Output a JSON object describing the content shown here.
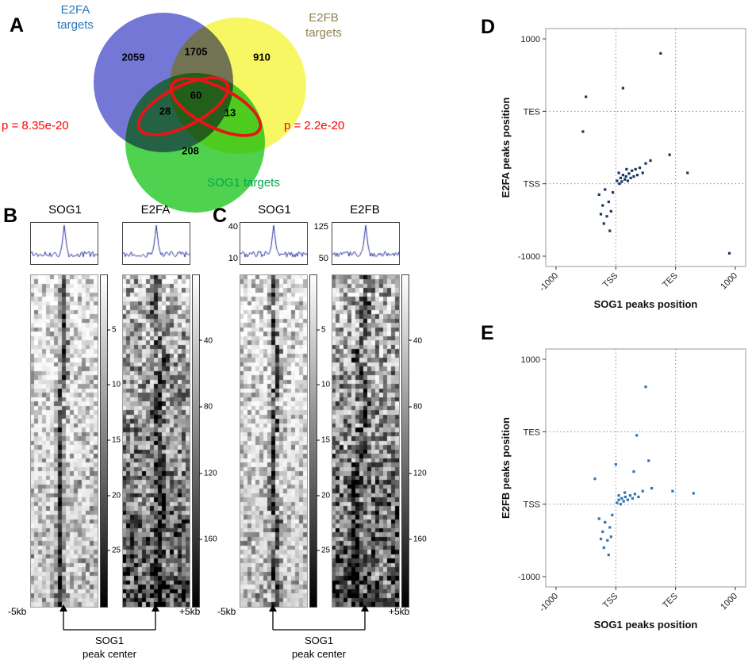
{
  "panel_letters": {
    "A": "A",
    "D": "D",
    "E": "E"
  },
  "venn": {
    "labels": {
      "e2fa": {
        "line1": "E2FA",
        "line2": "targets"
      },
      "e2fb": {
        "line1": "E2FB",
        "line2": "targets"
      },
      "sog1": "SOG1 targets"
    },
    "counts": {
      "e2fa_only": "2059",
      "e2fa_e2fb": "1705",
      "e2fb_only": "910",
      "e2fa_sog1": "28",
      "all_three": "60",
      "e2fb_sog1": "13",
      "sog1_only": "208"
    },
    "pvalues": {
      "left": "p = 8.35e-20",
      "right": "p = 2.2e-20"
    },
    "colors": {
      "e2fa_circle": "#7577d6",
      "e2fb_circle": "#f7f763",
      "sog1_circle": "#4fd24f",
      "e2fa_label": "#2e75b6",
      "e2fb_label": "#8f8455",
      "sog1_label": "#00a651",
      "highlight": "#e81417",
      "pvalue": "#ff0000"
    }
  },
  "heatmap_panels": [
    {
      "letter": "B",
      "columns": [
        {
          "title": "SOG1",
          "profile_ticks": [],
          "colorbar_ticks": [
            "5",
            "10",
            "15",
            "20",
            "25"
          ]
        },
        {
          "title": "E2FA",
          "profile_ticks": [],
          "colorbar_ticks": [
            "40",
            "80",
            "120",
            "160"
          ]
        }
      ],
      "x_left": "-5kb",
      "x_right": "+5kb",
      "annotation_line1": "SOG1",
      "annotation_line2": "peak center"
    },
    {
      "letter": "C",
      "columns": [
        {
          "title": "SOG1",
          "profile_ticks": [
            "40",
            "10"
          ],
          "colorbar_ticks": [
            "5",
            "10",
            "15",
            "20",
            "25"
          ]
        },
        {
          "title": "E2FB",
          "profile_ticks": [
            "125",
            "50"
          ],
          "colorbar_ticks": [
            "40",
            "80",
            "120",
            "160"
          ]
        }
      ],
      "x_left": "-5kb",
      "x_right": "+5kb",
      "annotation_line1": "SOG1",
      "annotation_line2": "peak center"
    }
  ],
  "chart_data": [
    {
      "type": "venn",
      "sets": [
        "E2FA targets",
        "E2FB targets",
        "SOG1 targets"
      ],
      "region_counts": {
        "E2FA only": 2059,
        "E2FA and E2FB": 1705,
        "E2FB only": 910,
        "E2FA and SOG1": 28,
        "E2FA and E2FB and SOG1": 60,
        "E2FB and SOG1": 13,
        "SOG1 only": 208
      },
      "highlight_pvalues": {
        "E2FA-SOG1 overlap": "p = 8.35e-20",
        "E2FB-SOG1 overlap": "p = 2.2e-20"
      }
    },
    {
      "type": "heatmap",
      "canvas": "hm-b-0",
      "profile_canvas": "pf-b-0",
      "panel": "B",
      "title": "SOG1",
      "rows": 76,
      "cols": 17,
      "seed": 101,
      "jitter": 0.5,
      "noise_exp": 2.4,
      "noise_amp": 0.5,
      "bottom_boost": 0.15,
      "scale_ticks": [
        5,
        10,
        15,
        20,
        25
      ],
      "x_range": [
        "-5kb",
        "+5kb"
      ],
      "centered_on": "SOG1 peak center",
      "profile_color": "#2a2f9c"
    },
    {
      "type": "heatmap",
      "canvas": "hm-b-1",
      "profile_canvas": "pf-b-1",
      "panel": "B",
      "title": "E2FA",
      "rows": 76,
      "cols": 17,
      "seed": 202,
      "jitter": 1.6,
      "noise_exp": 1.5,
      "noise_amp": 0.72,
      "bottom_boost": 0.55,
      "scale_ticks": [
        40,
        80,
        120,
        160
      ],
      "x_range": [
        "-5kb",
        "+5kb"
      ],
      "centered_on": "SOG1 peak center",
      "profile_color": "#2a2f9c"
    },
    {
      "type": "heatmap",
      "canvas": "hm-c-0",
      "profile_canvas": "pf-c-0",
      "panel": "C",
      "title": "SOG1",
      "rows": 76,
      "cols": 17,
      "seed": 303,
      "jitter": 0.5,
      "noise_exp": 2.4,
      "noise_amp": 0.5,
      "bottom_boost": 0.15,
      "scale_ticks": [
        5,
        10,
        15,
        20,
        25
      ],
      "profile_axis": [
        40,
        10
      ],
      "x_range": [
        "-5kb",
        "+5kb"
      ],
      "centered_on": "SOG1 peak center",
      "profile_color": "#2a2f9c"
    },
    {
      "type": "heatmap",
      "canvas": "hm-c-1",
      "profile_canvas": "pf-c-1",
      "panel": "C",
      "title": "E2FB",
      "rows": 76,
      "cols": 17,
      "seed": 404,
      "jitter": 1.6,
      "noise_exp": 1.5,
      "noise_amp": 0.72,
      "bottom_boost": 0.55,
      "scale_ticks": [
        40,
        80,
        120,
        160
      ],
      "profile_axis": [
        125,
        50
      ],
      "x_range": [
        "-5kb",
        "+5kb"
      ],
      "centered_on": "SOG1 peak center",
      "profile_color": "#2a2f9c"
    },
    {
      "type": "scatter",
      "id": "scatter-d",
      "xlabel": "SOG1 peaks position",
      "ylabel": "E2FA peaks position",
      "x_ticks": [
        "-1000",
        "TSS",
        "TES",
        "1000"
      ],
      "y_ticks": [
        "-1000",
        "TSS",
        "TES",
        "1000"
      ],
      "grid": "dotted at TSS and TES",
      "point_color": "#17375e",
      "points": [
        [
          1.02,
          1.04
        ],
        [
          1.06,
          1.0
        ],
        [
          1.08,
          1.08
        ],
        [
          1.1,
          1.03
        ],
        [
          1.12,
          1.12
        ],
        [
          1.15,
          1.06
        ],
        [
          1.17,
          1.1
        ],
        [
          1.2,
          1.04
        ],
        [
          1.22,
          1.14
        ],
        [
          1.25,
          1.08
        ],
        [
          1.27,
          1.18
        ],
        [
          1.3,
          1.1
        ],
        [
          1.33,
          1.2
        ],
        [
          1.36,
          1.12
        ],
        [
          1.4,
          1.22
        ],
        [
          1.45,
          1.15
        ],
        [
          1.5,
          1.28
        ],
        [
          1.58,
          1.32
        ],
        [
          1.05,
          1.15
        ],
        [
          1.18,
          1.2
        ],
        [
          0.72,
          0.85
        ],
        [
          0.78,
          0.7
        ],
        [
          0.82,
          0.92
        ],
        [
          0.85,
          0.55
        ],
        [
          0.88,
          0.75
        ],
        [
          0.92,
          0.62
        ],
        [
          0.95,
          0.88
        ],
        [
          0.8,
          0.45
        ],
        [
          0.9,
          0.35
        ],
        [
          0.75,
          0.58
        ],
        [
          1.75,
          2.8
        ],
        [
          0.5,
          2.2
        ],
        [
          1.12,
          2.32
        ],
        [
          2.2,
          1.15
        ],
        [
          2.9,
          0.04
        ],
        [
          1.9,
          1.4
        ],
        [
          0.45,
          1.72
        ]
      ]
    },
    {
      "type": "scatter",
      "id": "scatter-e",
      "xlabel": "SOG1 peaks position",
      "ylabel": "E2FB peaks position",
      "x_ticks": [
        "-1000",
        "TSS",
        "TES",
        "1000"
      ],
      "y_ticks": [
        "-1000",
        "TSS",
        "TES",
        "1000"
      ],
      "grid": "dotted at TSS and TES",
      "point_color": "#2e74b5",
      "points": [
        [
          1.02,
          1.02
        ],
        [
          1.05,
          1.06
        ],
        [
          1.08,
          1.0
        ],
        [
          1.1,
          1.08
        ],
        [
          1.13,
          1.04
        ],
        [
          1.16,
          1.1
        ],
        [
          1.2,
          1.06
        ],
        [
          1.24,
          1.12
        ],
        [
          1.28,
          1.08
        ],
        [
          1.32,
          1.14
        ],
        [
          1.05,
          1.12
        ],
        [
          1.15,
          1.16
        ],
        [
          1.38,
          1.1
        ],
        [
          1.45,
          1.18
        ],
        [
          1.6,
          1.22
        ],
        [
          0.72,
          0.8
        ],
        [
          0.78,
          0.62
        ],
        [
          0.82,
          0.75
        ],
        [
          0.86,
          0.5
        ],
        [
          0.9,
          0.68
        ],
        [
          0.94,
          0.85
        ],
        [
          0.8,
          0.4
        ],
        [
          0.88,
          0.3
        ],
        [
          0.75,
          0.52
        ],
        [
          0.92,
          0.55
        ],
        [
          1.5,
          2.62
        ],
        [
          1.35,
          1.95
        ],
        [
          1.55,
          1.6
        ],
        [
          1.3,
          1.45
        ],
        [
          2.3,
          1.15
        ],
        [
          1.95,
          1.18
        ],
        [
          1.0,
          1.55
        ],
        [
          0.65,
          1.35
        ]
      ]
    }
  ]
}
